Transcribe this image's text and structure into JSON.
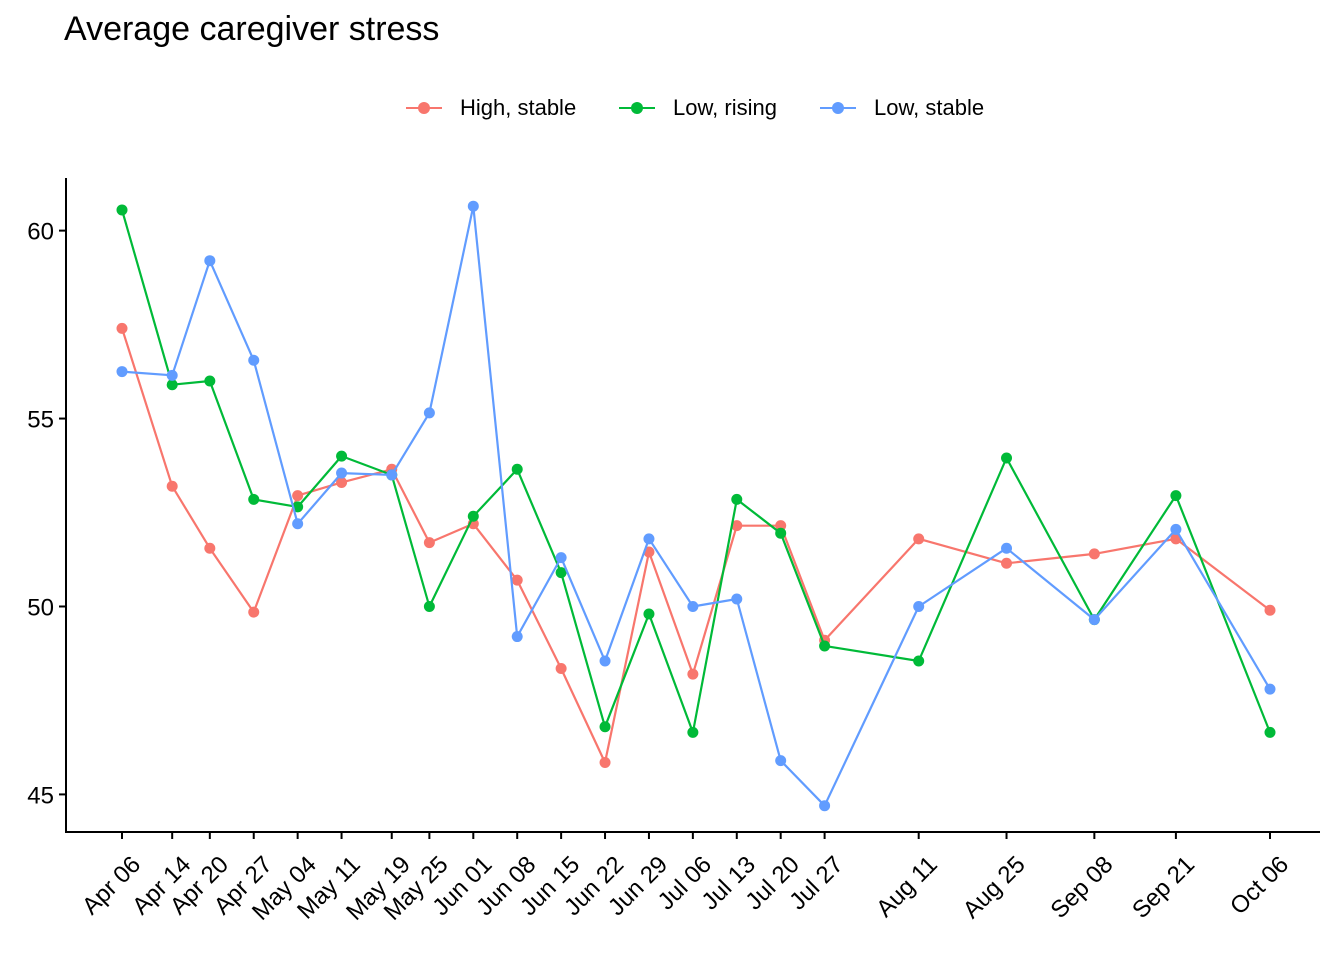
{
  "chart_data": {
    "type": "line",
    "title": "Average caregiver stress",
    "xlabel": "",
    "ylabel": "",
    "x": [
      "Apr 06",
      "Apr 14",
      "Apr 20",
      "Apr 27",
      "May 04",
      "May 11",
      "May 19",
      "May 25",
      "Jun 01",
      "Jun 08",
      "Jun 15",
      "Jun 22",
      "Jun 29",
      "Jul 06",
      "Jul 13",
      "Jul 20",
      "Jul 27",
      "Aug 11",
      "Aug 25",
      "Sep 08",
      "Sep 21",
      "Oct 06"
    ],
    "x_days": [
      0,
      8,
      14,
      21,
      28,
      35,
      43,
      49,
      56,
      63,
      70,
      77,
      84,
      91,
      98,
      105,
      112,
      127,
      141,
      155,
      168,
      183
    ],
    "ylim": [
      44.0,
      61.4
    ],
    "yticks": [
      45,
      50,
      55,
      60
    ],
    "grid": false,
    "legend_position": "top",
    "series": [
      {
        "name": "High, stable",
        "color": "#F8766D",
        "values": [
          57.4,
          53.2,
          51.55,
          49.85,
          52.95,
          53.3,
          53.65,
          51.7,
          52.2,
          50.7,
          48.35,
          45.85,
          51.45,
          48.2,
          52.15,
          52.15,
          49.1,
          51.8,
          51.15,
          51.4,
          51.8,
          49.9
        ]
      },
      {
        "name": "Low, rising",
        "color": "#00BA38",
        "values": [
          60.55,
          55.9,
          56.0,
          52.85,
          52.65,
          54.0,
          53.5,
          50.0,
          52.4,
          53.65,
          50.9,
          46.8,
          49.8,
          46.65,
          52.85,
          51.95,
          48.95,
          48.55,
          53.95,
          49.65,
          52.95,
          46.65
        ]
      },
      {
        "name": "Low, stable",
        "color": "#619CFF",
        "values": [
          56.25,
          56.15,
          59.2,
          56.55,
          52.2,
          53.55,
          53.5,
          55.15,
          60.65,
          49.2,
          51.3,
          48.55,
          51.8,
          50.0,
          50.2,
          45.9,
          44.7,
          50.0,
          51.55,
          49.65,
          52.05,
          47.8
        ]
      }
    ]
  }
}
